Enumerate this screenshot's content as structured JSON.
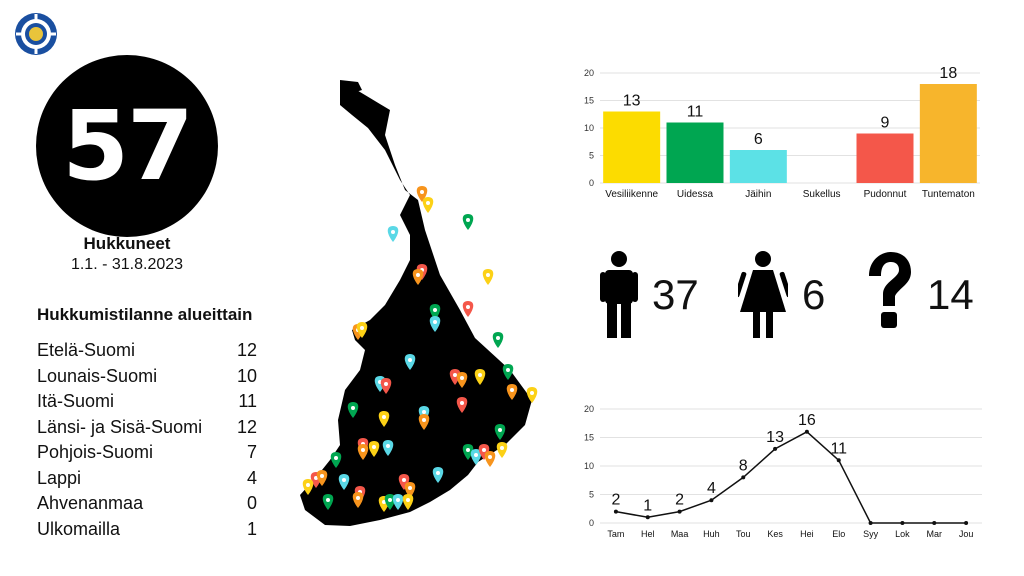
{
  "header": {
    "logo_icon": "life-ring-logo-icon"
  },
  "total": {
    "value": "57",
    "label": "Hukkuneet",
    "period": "1.1. - 31.8.2023"
  },
  "regions": {
    "title": "Hukkumistilanne alueittain",
    "items": [
      {
        "name": "Etelä-Suomi",
        "value": "12"
      },
      {
        "name": "Lounais-Suomi",
        "value": "10"
      },
      {
        "name": "Itä-Suomi",
        "value": "11"
      },
      {
        "name": "Länsi- ja Sisä-Suomi",
        "value": "12"
      },
      {
        "name": "Pohjois-Suomi",
        "value": "7"
      },
      {
        "name": "Lappi",
        "value": "4"
      },
      {
        "name": "Ahvenanmaa",
        "value": "0"
      },
      {
        "name": "Ulkomailla",
        "value": "1"
      }
    ]
  },
  "gender": [
    {
      "icon": "male-icon",
      "value": "37"
    },
    {
      "icon": "female-icon",
      "value": "6"
    },
    {
      "icon": "question-mark-icon",
      "value": "14"
    }
  ],
  "map": {
    "icon": "finland-map-icon",
    "pin_colors": [
      "#f7941d",
      "#fcd116",
      "#00a651",
      "#5ad8e6",
      "#f4574a"
    ]
  },
  "chart_data": [
    {
      "type": "bar",
      "categories": [
        "Vesiliikenne",
        "Uidessa",
        "Jäihin",
        "Sukellus",
        "Pudonnut",
        "Tuntematon"
      ],
      "values": [
        13,
        11,
        6,
        0,
        9,
        18
      ],
      "value_labels": [
        "13",
        "11",
        "6",
        "",
        "9",
        "18"
      ],
      "colors": [
        "#fcdc00",
        "#00a651",
        "#5ce1e6",
        "#cccccc",
        "#f4574a",
        "#f7b52c"
      ],
      "yticks": [
        0,
        5,
        10,
        15,
        20
      ],
      "ylim": [
        0,
        20
      ],
      "title": "",
      "xlabel": "",
      "ylabel": ""
    },
    {
      "type": "line",
      "categories": [
        "Tam",
        "Hel",
        "Maa",
        "Huh",
        "Tou",
        "Kes",
        "Hei",
        "Elo",
        "Syy",
        "Lok",
        "Mar",
        "Jou"
      ],
      "values": [
        2,
        1,
        2,
        4,
        8,
        13,
        16,
        11,
        0,
        0,
        0,
        0
      ],
      "value_labels": [
        "2",
        "1",
        "2",
        "4",
        "8",
        "13",
        "16",
        "11",
        "",
        "",
        "",
        ""
      ],
      "yticks": [
        0,
        5,
        10,
        15,
        20
      ],
      "ylim": [
        0,
        20
      ],
      "title": "",
      "xlabel": "",
      "ylabel": ""
    }
  ]
}
